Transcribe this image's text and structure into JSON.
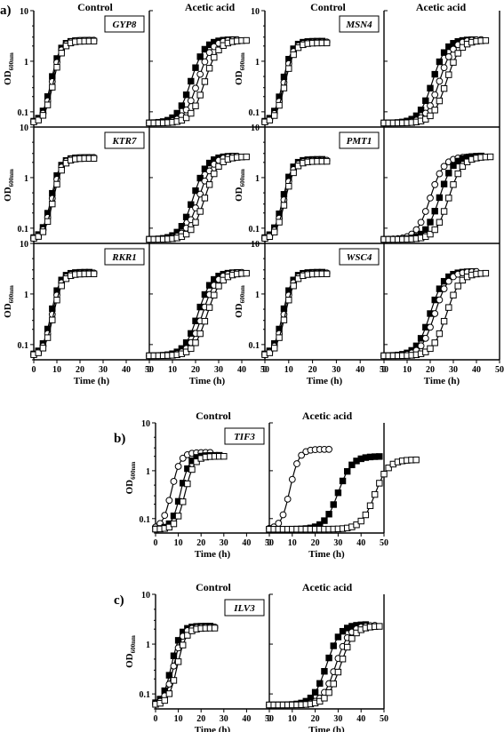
{
  "figure": {
    "panel_labels": [
      "a)",
      "b)",
      "c)"
    ],
    "column_titles": {
      "control": "Control",
      "acetic": "Acetic acid"
    },
    "y_axis_label": {
      "main": "OD",
      "sub": "600nm"
    },
    "x_axis_label": "Time (h)",
    "x_ticks_control": [
      "0",
      "10",
      "20",
      "30",
      "40",
      "50"
    ],
    "x_ticks_acetic": [
      "0",
      "10",
      "20",
      "30",
      "40",
      "50"
    ],
    "y_ticks": [
      "10",
      "1",
      "0.1"
    ]
  },
  "chart_data": [
    {
      "type": "line",
      "panel": "a",
      "gene": "GYP8",
      "control": {
        "x": [
          0,
          35
        ],
        "y_range": [
          0.05,
          10
        ],
        "series": [
          {
            "marker": "filled-square",
            "midpoint": 7.5,
            "plateau": 2.6
          },
          {
            "marker": "open-circle",
            "midpoint": 8.0,
            "plateau": 2.6
          },
          {
            "marker": "open-square",
            "midpoint": 8.5,
            "plateau": 2.5
          }
        ]
      },
      "acetic": {
        "series": [
          {
            "marker": "filled-square",
            "midpoint": 18,
            "plateau": 2.7
          },
          {
            "marker": "open-circle",
            "midpoint": 21,
            "plateau": 2.7
          },
          {
            "marker": "open-square",
            "midpoint": 24,
            "plateau": 2.6
          }
        ]
      }
    },
    {
      "type": "line",
      "panel": "a",
      "gene": "MSN4",
      "control": {
        "series": [
          {
            "marker": "filled-square",
            "midpoint": 7.5,
            "plateau": 2.5
          },
          {
            "marker": "open-circle",
            "midpoint": 8.0,
            "plateau": 2.4
          },
          {
            "marker": "open-square",
            "midpoint": 8.5,
            "plateau": 2.3
          }
        ]
      },
      "acetic": {
        "series": [
          {
            "marker": "filled-square",
            "midpoint": 21,
            "plateau": 2.7
          },
          {
            "marker": "open-circle",
            "midpoint": 24,
            "plateau": 2.7
          },
          {
            "marker": "open-square",
            "midpoint": 27,
            "plateau": 2.6
          }
        ]
      }
    },
    {
      "type": "line",
      "panel": "a",
      "gene": "KTR7",
      "control": {
        "series": [
          {
            "marker": "filled-square",
            "midpoint": 7.5,
            "plateau": 2.5
          },
          {
            "marker": "open-circle",
            "midpoint": 8.0,
            "plateau": 2.5
          },
          {
            "marker": "open-square",
            "midpoint": 8.5,
            "plateau": 2.4
          }
        ]
      },
      "acetic": {
        "series": [
          {
            "marker": "filled-square",
            "midpoint": 19,
            "plateau": 2.7
          },
          {
            "marker": "open-circle",
            "midpoint": 21.5,
            "plateau": 2.7
          },
          {
            "marker": "open-square",
            "midpoint": 24,
            "plateau": 2.6
          }
        ]
      }
    },
    {
      "type": "line",
      "panel": "a",
      "gene": "PMT1",
      "control": {
        "series": [
          {
            "marker": "filled-square",
            "midpoint": 7.5,
            "plateau": 2.3
          },
          {
            "marker": "open-circle",
            "midpoint": 8.0,
            "plateau": 2.2
          },
          {
            "marker": "open-square",
            "midpoint": 8.5,
            "plateau": 2.1
          }
        ]
      },
      "acetic": {
        "series": [
          {
            "marker": "open-circle",
            "midpoint": 20,
            "plateau": 2.6
          },
          {
            "marker": "filled-square",
            "midpoint": 24,
            "plateau": 2.7
          },
          {
            "marker": "open-square",
            "midpoint": 28,
            "plateau": 2.6
          }
        ]
      }
    },
    {
      "type": "line",
      "panel": "a",
      "gene": "RKR1",
      "control": {
        "series": [
          {
            "marker": "filled-square",
            "midpoint": 7.5,
            "plateau": 2.7
          },
          {
            "marker": "open-circle",
            "midpoint": 8.0,
            "plateau": 2.6
          },
          {
            "marker": "open-square",
            "midpoint": 8.5,
            "plateau": 2.5
          }
        ]
      },
      "acetic": {
        "series": [
          {
            "marker": "filled-square",
            "midpoint": 21,
            "plateau": 2.7
          },
          {
            "marker": "open-circle",
            "midpoint": 23,
            "plateau": 2.7
          },
          {
            "marker": "open-square",
            "midpoint": 25,
            "plateau": 2.6
          }
        ]
      }
    },
    {
      "type": "line",
      "panel": "a",
      "gene": "WSC4",
      "control": {
        "series": [
          {
            "marker": "filled-square",
            "midpoint": 7.5,
            "plateau": 2.7
          },
          {
            "marker": "open-circle",
            "midpoint": 8.0,
            "plateau": 2.6
          },
          {
            "marker": "open-square",
            "midpoint": 8.5,
            "plateau": 2.5
          }
        ]
      },
      "acetic": {
        "series": [
          {
            "marker": "filled-square",
            "midpoint": 20,
            "plateau": 2.8
          },
          {
            "marker": "open-circle",
            "midpoint": 22,
            "plateau": 2.8
          },
          {
            "marker": "open-square",
            "midpoint": 27,
            "plateau": 2.6
          }
        ]
      }
    },
    {
      "type": "line",
      "panel": "b",
      "gene": "TIF3",
      "control": {
        "series": [
          {
            "marker": "open-circle",
            "midpoint": 7,
            "plateau": 2.4
          },
          {
            "marker": "filled-square",
            "midpoint": 11,
            "plateau": 2.1
          },
          {
            "marker": "open-square",
            "midpoint": 13,
            "plateau": 2.0
          }
        ]
      },
      "acetic": {
        "series": [
          {
            "marker": "open-circle",
            "midpoint": 9,
            "plateau": 2.8
          },
          {
            "marker": "filled-square",
            "midpoint": 30,
            "plateau": 2.0
          },
          {
            "marker": "open-square",
            "midpoint": 46,
            "plateau": 1.7
          }
        ]
      }
    },
    {
      "type": "line",
      "panel": "c",
      "gene": "ILV3",
      "control": {
        "series": [
          {
            "marker": "filled-square",
            "midpoint": 7,
            "plateau": 2.3
          },
          {
            "marker": "open-circle",
            "midpoint": 8,
            "plateau": 2.2
          },
          {
            "marker": "open-square",
            "midpoint": 9.5,
            "plateau": 2.1
          }
        ]
      },
      "acetic": {
        "series": [
          {
            "marker": "filled-square",
            "midpoint": 25,
            "plateau": 2.5
          },
          {
            "marker": "open-circle",
            "midpoint": 29,
            "plateau": 2.4
          },
          {
            "marker": "open-square",
            "midpoint": 31,
            "plateau": 2.3
          }
        ]
      }
    }
  ]
}
